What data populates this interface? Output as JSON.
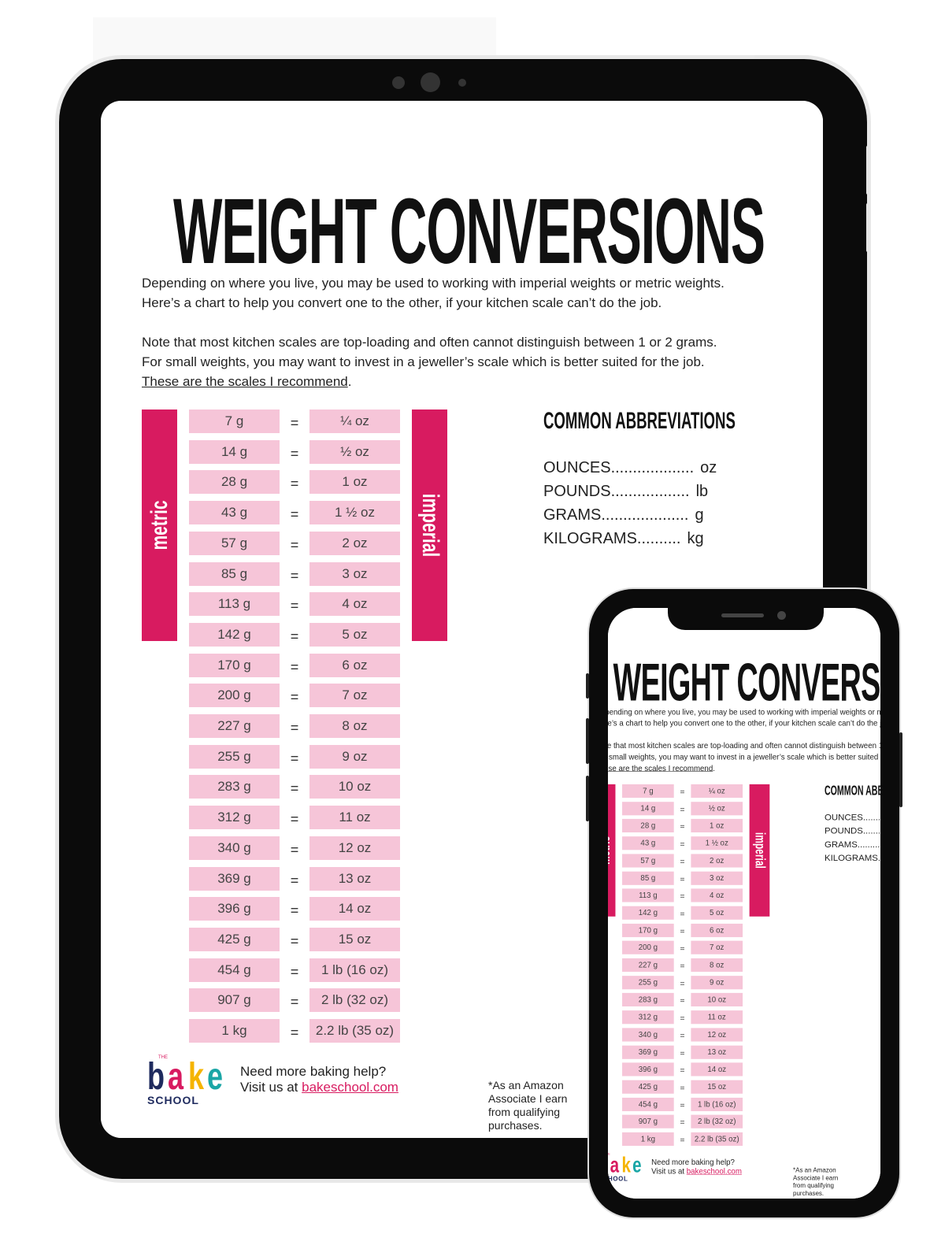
{
  "document": {
    "title": "WEIGHT CONVERSIONS",
    "intro_lines": [
      "Depending on where you live, you may be used to working with imperial weights or metric weights.",
      "Here’s a chart to help you convert one to the other, if your kitchen scale can’t do the job."
    ],
    "note_lines": [
      "Note that most kitchen scales are top-loading and often cannot distinguish between 1 or 2 grams.",
      "For small weights, you may want to invest in a jeweller’s scale which is better suited for the job."
    ],
    "scales_link": "These are the scales I recommend",
    "scales_link_period": ".",
    "metric_label": "metric",
    "imperial_label": "imperial",
    "equals": "=",
    "rows": [
      [
        "7 g",
        "¼ oz"
      ],
      [
        "14 g",
        "½  oz"
      ],
      [
        "28 g",
        "1 oz"
      ],
      [
        "43 g",
        "1 ½ oz"
      ],
      [
        "57 g",
        "2 oz"
      ],
      [
        "85 g",
        "3 oz"
      ],
      [
        "113 g",
        "4 oz"
      ],
      [
        "142 g",
        "5 oz"
      ],
      [
        "170 g",
        "6 oz"
      ],
      [
        "200 g",
        "7 oz"
      ],
      [
        "227 g",
        "8 oz"
      ],
      [
        "255 g",
        "9 oz"
      ],
      [
        "283 g",
        "10 oz"
      ],
      [
        "312 g",
        "11 oz"
      ],
      [
        "340 g",
        "12 oz"
      ],
      [
        "369 g",
        "13 oz"
      ],
      [
        "396 g",
        "14 oz"
      ],
      [
        "425 g",
        "15 oz"
      ],
      [
        "454 g",
        "1 lb (16 oz)"
      ],
      [
        "907 g",
        "2 lb (32 oz)"
      ],
      [
        "1 kg",
        "2.2 lb (35 oz)"
      ]
    ],
    "abbreviations_title": "COMMON ABBREVIATIONS",
    "abbreviations": [
      {
        "name": "OUNCES...................",
        "abbr": "oz"
      },
      {
        "name": "POUNDS..................",
        "abbr": "lb"
      },
      {
        "name": "GRAMS....................",
        "abbr": "g"
      },
      {
        "name": "KILOGRAMS..........",
        "abbr": "kg"
      }
    ],
    "logo": {
      "the": "THE",
      "letters": [
        "b",
        "a",
        "k",
        "e"
      ],
      "school": "SCHOOL"
    },
    "footer_line1": "Need more baking help?",
    "footer_prefix": "Visit us at ",
    "footer_link": "bakeschool.com",
    "amazon_note": "*As an Amazon Associate I earn from qualifying purchases."
  },
  "colors": {
    "accent": "#d81b60",
    "cell": "#f6c5d8",
    "logo": [
      "#1e2a5e",
      "#d81b60",
      "#f5b400",
      "#1aa6a6"
    ]
  }
}
